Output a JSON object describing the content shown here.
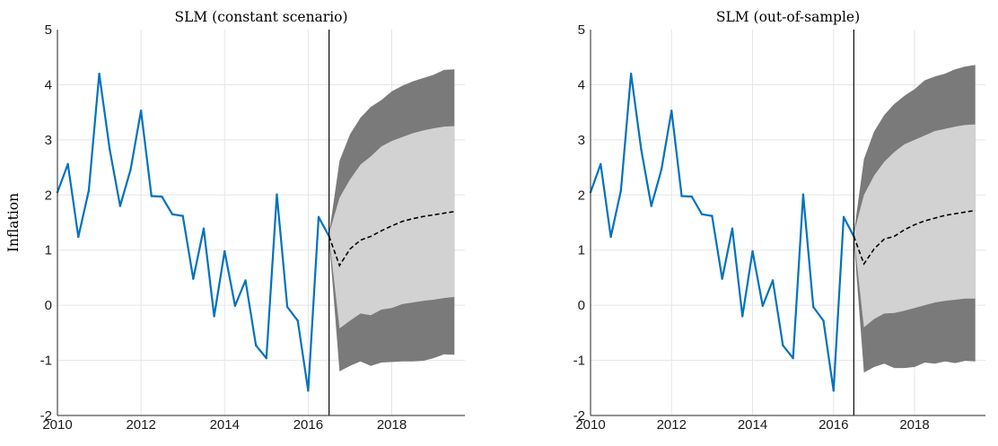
{
  "chart_data": [
    {
      "type": "line",
      "title": "SLM (constant scenario)",
      "xlabel": "",
      "ylabel": "Inflation",
      "xlim": [
        2010,
        2019.75
      ],
      "ylim": [
        -2,
        5
      ],
      "xticks": [
        "2010",
        "2012",
        "2014",
        "2016",
        "2018"
      ],
      "yticks": [
        "-2",
        "-1",
        "0",
        "1",
        "2",
        "3",
        "4",
        "5"
      ],
      "grid": true,
      "forecast_origin": 2016.5,
      "colors": {
        "series": "#0072BD",
        "outer_band": "#7a7a7a",
        "inner_band": "#d2d2d2",
        "median": "#000000"
      },
      "series": [
        {
          "x": [
            2010.0,
            2010.25,
            2010.5,
            2010.75,
            2011.0,
            2011.25,
            2011.5,
            2011.75,
            2012.0,
            2012.25,
            2012.5,
            2012.75,
            2013.0,
            2013.25,
            2013.5,
            2013.75,
            2014.0,
            2014.25,
            2014.5,
            2014.75,
            2015.0,
            2015.25,
            2015.5,
            2015.75,
            2016.0,
            2016.25,
            2016.5
          ],
          "values": [
            2.05,
            2.56,
            1.24,
            2.08,
            4.2,
            2.83,
            1.8,
            2.46,
            3.53,
            1.98,
            1.97,
            1.65,
            1.62,
            0.48,
            1.39,
            -0.2,
            0.98,
            -0.01,
            0.45,
            -0.73,
            -0.96,
            2.01,
            -0.03,
            -0.28,
            -1.55,
            1.6,
            1.25
          ]
        }
      ],
      "forecast": {
        "x": [
          2016.5,
          2016.75,
          2017.0,
          2017.25,
          2017.5,
          2017.75,
          2018.0,
          2018.25,
          2018.5,
          2018.75,
          2019.0,
          2019.25,
          2019.5
        ],
        "median": [
          1.25,
          0.72,
          1.02,
          1.18,
          1.25,
          1.35,
          1.44,
          1.52,
          1.57,
          1.61,
          1.64,
          1.67,
          1.7
        ],
        "outer_upper": [
          1.3,
          2.62,
          3.1,
          3.4,
          3.6,
          3.72,
          3.88,
          3.98,
          4.06,
          4.12,
          4.18,
          4.27,
          4.28
        ],
        "inner_upper": [
          1.3,
          1.95,
          2.28,
          2.55,
          2.7,
          2.88,
          2.98,
          3.05,
          3.12,
          3.17,
          3.21,
          3.24,
          3.25
        ],
        "inner_lower": [
          1.25,
          -0.42,
          -0.28,
          -0.15,
          -0.18,
          -0.08,
          -0.05,
          0.02,
          0.05,
          0.08,
          0.1,
          0.13,
          0.15
        ],
        "outer_lower": [
          1.2,
          -1.2,
          -1.1,
          -1.02,
          -1.1,
          -1.04,
          -1.03,
          -1.02,
          -1.02,
          -1.01,
          -0.96,
          -0.89,
          -0.9
        ]
      }
    },
    {
      "type": "line",
      "title": "SLM (out-of-sample)",
      "xlabel": "",
      "ylabel": "",
      "xlim": [
        2010,
        2019.75
      ],
      "ylim": [
        -2,
        5
      ],
      "xticks": [
        "2010",
        "2012",
        "2014",
        "2016",
        "2018"
      ],
      "yticks": [
        "-2",
        "-1",
        "0",
        "1",
        "2",
        "3",
        "4",
        "5"
      ],
      "grid": true,
      "forecast_origin": 2016.5,
      "colors": {
        "series": "#0072BD",
        "outer_band": "#7a7a7a",
        "inner_band": "#d2d2d2",
        "median": "#000000"
      },
      "series": [
        {
          "x": [
            2010.0,
            2010.25,
            2010.5,
            2010.75,
            2011.0,
            2011.25,
            2011.5,
            2011.75,
            2012.0,
            2012.25,
            2012.5,
            2012.75,
            2013.0,
            2013.25,
            2013.5,
            2013.75,
            2014.0,
            2014.25,
            2014.5,
            2014.75,
            2015.0,
            2015.25,
            2015.5,
            2015.75,
            2016.0,
            2016.25,
            2016.5
          ],
          "values": [
            2.05,
            2.56,
            1.24,
            2.08,
            4.2,
            2.83,
            1.8,
            2.46,
            3.53,
            1.98,
            1.97,
            1.65,
            1.62,
            0.48,
            1.39,
            -0.2,
            0.98,
            -0.01,
            0.45,
            -0.73,
            -0.96,
            2.01,
            -0.03,
            -0.28,
            -1.55,
            1.6,
            1.25
          ]
        }
      ],
      "forecast": {
        "x": [
          2016.5,
          2016.75,
          2017.0,
          2017.25,
          2017.5,
          2017.75,
          2018.0,
          2018.25,
          2018.5,
          2018.75,
          2019.0,
          2019.25,
          2019.5
        ],
        "median": [
          1.25,
          0.75,
          1.02,
          1.2,
          1.25,
          1.37,
          1.46,
          1.53,
          1.58,
          1.63,
          1.66,
          1.69,
          1.72
        ],
        "outer_upper": [
          1.3,
          2.65,
          3.15,
          3.45,
          3.65,
          3.8,
          3.92,
          4.08,
          4.15,
          4.2,
          4.28,
          4.33,
          4.36
        ],
        "inner_upper": [
          1.3,
          2.0,
          2.35,
          2.6,
          2.78,
          2.92,
          3.0,
          3.08,
          3.16,
          3.2,
          3.24,
          3.27,
          3.28
        ],
        "inner_lower": [
          1.25,
          -0.4,
          -0.25,
          -0.15,
          -0.14,
          -0.1,
          -0.05,
          0.0,
          0.05,
          0.08,
          0.1,
          0.12,
          0.12
        ],
        "outer_lower": [
          1.2,
          -1.22,
          -1.12,
          -1.06,
          -1.14,
          -1.14,
          -1.12,
          -1.04,
          -1.06,
          -1.02,
          -1.05,
          -1.01,
          -1.02
        ]
      }
    }
  ]
}
